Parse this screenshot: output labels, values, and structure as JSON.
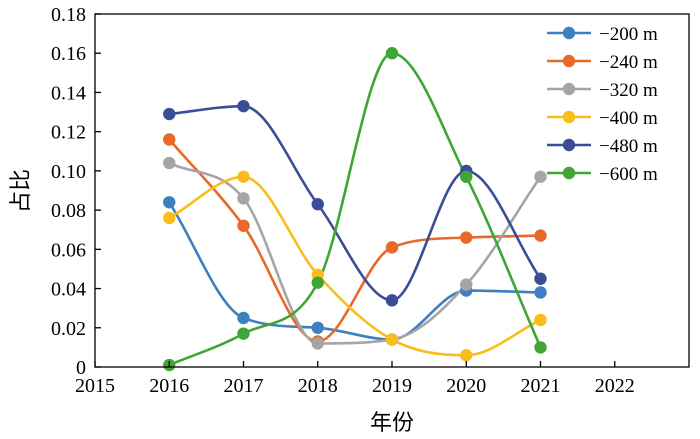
{
  "chart_data": {
    "type": "line",
    "title": "",
    "xlabel": "年份",
    "ylabel": "占比",
    "xlim": [
      2015,
      2023
    ],
    "ylim": [
      0,
      0.18
    ],
    "xticks": [
      2015,
      2016,
      2017,
      2018,
      2019,
      2020,
      2021,
      2022
    ],
    "yticks": [
      0,
      0.02,
      0.04,
      0.06,
      0.08,
      0.1,
      0.12,
      0.14,
      0.16,
      0.18
    ],
    "ytick_labels": [
      "0",
      "0.02",
      "0.04",
      "0.06",
      "0.08",
      "0.10",
      "0.12",
      "0.14",
      "0.16",
      "0.18"
    ],
    "grid": false,
    "legend_position": "top-right",
    "smooth": true,
    "x": [
      2016,
      2017,
      2018,
      2019,
      2020,
      2021
    ],
    "series": [
      {
        "name": "−200 m",
        "color": "#3e7fbf",
        "values": [
          0.084,
          0.025,
          0.02,
          0.014,
          0.039,
          0.038
        ]
      },
      {
        "name": "−240 m",
        "color": "#e8692a",
        "values": [
          0.116,
          0.072,
          0.013,
          0.061,
          0.066,
          0.067
        ]
      },
      {
        "name": "−320 m",
        "color": "#a5a5a5",
        "values": [
          0.104,
          0.086,
          0.012,
          0.014,
          0.042,
          0.097
        ]
      },
      {
        "name": "−400 m",
        "color": "#fbbd1c",
        "values": [
          0.076,
          0.097,
          0.047,
          0.014,
          0.006,
          0.024
        ]
      },
      {
        "name": "−480 m",
        "color": "#3c4d97",
        "values": [
          0.129,
          0.133,
          0.083,
          0.034,
          0.1,
          0.045
        ]
      },
      {
        "name": "−600 m",
        "color": "#3fa535",
        "values": [
          0.001,
          0.017,
          0.043,
          0.16,
          0.097,
          0.01
        ]
      }
    ]
  }
}
